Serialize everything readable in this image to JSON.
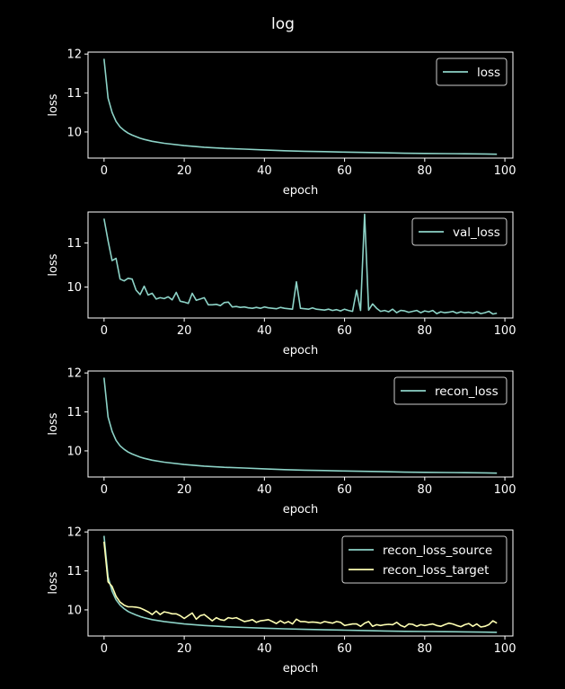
{
  "figure": {
    "title": "log",
    "background": "#000000"
  },
  "colors": {
    "series1": "#8dd3c7",
    "series2": "#feffb3",
    "axes": "#ffffff",
    "text": "#ffffff"
  },
  "chart_data": [
    {
      "type": "line",
      "xlabel": "epoch",
      "ylabel": "loss",
      "xlim": [
        -4,
        102
      ],
      "ylim": [
        9.33,
        12.05
      ],
      "xticks": [
        0,
        20,
        40,
        60,
        80,
        100
      ],
      "yticks": [
        10,
        11,
        12
      ],
      "legend": "upper right",
      "series": [
        {
          "name": "loss",
          "color": "#8dd3c7",
          "x": [
            0,
            1,
            2,
            3,
            4,
            5,
            6,
            7,
            8,
            9,
            10,
            12,
            15,
            20,
            25,
            30,
            35,
            40,
            45,
            50,
            55,
            60,
            65,
            70,
            75,
            80,
            85,
            90,
            95,
            98
          ],
          "y": [
            11.88,
            10.87,
            10.5,
            10.27,
            10.13,
            10.04,
            9.97,
            9.92,
            9.88,
            9.84,
            9.81,
            9.76,
            9.71,
            9.65,
            9.61,
            9.58,
            9.56,
            9.54,
            9.52,
            9.505,
            9.495,
            9.485,
            9.475,
            9.465,
            9.455,
            9.45,
            9.445,
            9.44,
            9.435,
            9.43
          ]
        }
      ]
    },
    {
      "type": "line",
      "xlabel": "epoch",
      "ylabel": "loss",
      "xlim": [
        -4,
        102
      ],
      "ylim": [
        9.3,
        11.7
      ],
      "xticks": [
        0,
        20,
        40,
        60,
        80,
        100
      ],
      "yticks": [
        10,
        11
      ],
      "legend": "upper right",
      "series": [
        {
          "name": "val_loss",
          "color": "#8dd3c7",
          "x": [
            0,
            1,
            2,
            3,
            4,
            5,
            6,
            7,
            8,
            9,
            10,
            11,
            12,
            13,
            14,
            15,
            16,
            17,
            18,
            19,
            20,
            21,
            22,
            23,
            24,
            25,
            26,
            27,
            28,
            29,
            30,
            31,
            32,
            33,
            34,
            35,
            36,
            37,
            38,
            39,
            40,
            41,
            42,
            43,
            44,
            45,
            46,
            47,
            48,
            49,
            50,
            51,
            52,
            53,
            54,
            55,
            56,
            57,
            58,
            59,
            60,
            61,
            62,
            63,
            64,
            65,
            66,
            67,
            68,
            69,
            70,
            71,
            72,
            73,
            74,
            75,
            76,
            77,
            78,
            79,
            80,
            81,
            82,
            83,
            84,
            85,
            86,
            87,
            88,
            89,
            90,
            91,
            92,
            93,
            94,
            95,
            96,
            97,
            98
          ],
          "y": [
            11.55,
            11.05,
            10.6,
            10.65,
            10.18,
            10.14,
            10.2,
            10.18,
            9.93,
            9.83,
            10.02,
            9.82,
            9.86,
            9.73,
            9.76,
            9.74,
            9.78,
            9.71,
            9.88,
            9.68,
            9.66,
            9.63,
            9.86,
            9.7,
            9.73,
            9.76,
            9.6,
            9.6,
            9.61,
            9.58,
            9.65,
            9.66,
            9.55,
            9.56,
            9.54,
            9.55,
            9.53,
            9.52,
            9.54,
            9.52,
            9.55,
            9.53,
            9.52,
            9.51,
            9.54,
            9.52,
            9.51,
            9.5,
            10.12,
            9.52,
            9.51,
            9.5,
            9.53,
            9.5,
            9.49,
            9.48,
            9.5,
            9.47,
            9.49,
            9.46,
            9.5,
            9.47,
            9.45,
            9.93,
            9.47,
            11.65,
            9.48,
            9.62,
            9.52,
            9.45,
            9.47,
            9.44,
            9.5,
            9.42,
            9.47,
            9.46,
            9.43,
            9.45,
            9.47,
            9.42,
            9.46,
            9.44,
            9.47,
            9.4,
            9.44,
            9.42,
            9.43,
            9.45,
            9.41,
            9.44,
            9.42,
            9.43,
            9.41,
            9.44,
            9.4,
            9.42,
            9.45,
            9.39,
            9.41
          ]
        }
      ]
    },
    {
      "type": "line",
      "xlabel": "epoch",
      "ylabel": "loss",
      "xlim": [
        -4,
        102
      ],
      "ylim": [
        9.33,
        12.05
      ],
      "xticks": [
        0,
        20,
        40,
        60,
        80,
        100
      ],
      "yticks": [
        10,
        11,
        12
      ],
      "legend": "upper right",
      "series": [
        {
          "name": "recon_loss",
          "color": "#8dd3c7",
          "x": [
            0,
            1,
            2,
            3,
            4,
            5,
            6,
            7,
            8,
            9,
            10,
            12,
            15,
            20,
            25,
            30,
            35,
            40,
            45,
            50,
            55,
            60,
            65,
            70,
            75,
            80,
            85,
            90,
            95,
            98
          ],
          "y": [
            11.88,
            10.87,
            10.5,
            10.27,
            10.13,
            10.04,
            9.97,
            9.92,
            9.88,
            9.84,
            9.81,
            9.76,
            9.71,
            9.65,
            9.61,
            9.58,
            9.56,
            9.54,
            9.52,
            9.505,
            9.495,
            9.485,
            9.475,
            9.465,
            9.455,
            9.45,
            9.445,
            9.44,
            9.435,
            9.43
          ]
        }
      ]
    },
    {
      "type": "line",
      "xlabel": "epoch",
      "ylabel": "loss",
      "xlim": [
        -4,
        102
      ],
      "ylim": [
        9.33,
        12.05
      ],
      "xticks": [
        0,
        20,
        40,
        60,
        80,
        100
      ],
      "yticks": [
        10,
        11,
        12
      ],
      "legend": "upper right",
      "series": [
        {
          "name": "recon_loss_source",
          "color": "#8dd3c7",
          "x": [
            0,
            1,
            2,
            3,
            4,
            5,
            6,
            7,
            8,
            9,
            10,
            12,
            15,
            20,
            25,
            30,
            35,
            40,
            45,
            50,
            55,
            60,
            65,
            70,
            75,
            80,
            85,
            90,
            95,
            98
          ],
          "y": [
            11.9,
            10.85,
            10.48,
            10.26,
            10.12,
            10.03,
            9.96,
            9.91,
            9.87,
            9.83,
            9.8,
            9.75,
            9.7,
            9.64,
            9.6,
            9.57,
            9.55,
            9.53,
            9.515,
            9.5,
            9.49,
            9.48,
            9.47,
            9.46,
            9.45,
            9.445,
            9.44,
            9.435,
            9.43,
            9.425
          ]
        },
        {
          "name": "recon_loss_target",
          "color": "#feffb3",
          "x": [
            0,
            1,
            2,
            3,
            4,
            5,
            6,
            7,
            8,
            9,
            10,
            11,
            12,
            13,
            14,
            15,
            16,
            17,
            18,
            19,
            20,
            21,
            22,
            23,
            24,
            25,
            26,
            27,
            28,
            29,
            30,
            31,
            32,
            33,
            34,
            35,
            36,
            37,
            38,
            39,
            40,
            41,
            42,
            43,
            44,
            45,
            46,
            47,
            48,
            49,
            50,
            51,
            52,
            53,
            54,
            55,
            56,
            57,
            58,
            59,
            60,
            61,
            62,
            63,
            64,
            65,
            66,
            67,
            68,
            69,
            70,
            71,
            72,
            73,
            74,
            75,
            76,
            77,
            78,
            79,
            80,
            81,
            82,
            83,
            84,
            85,
            86,
            87,
            88,
            89,
            90,
            91,
            92,
            93,
            94,
            95,
            96,
            97,
            98
          ],
          "y": [
            11.75,
            10.72,
            10.6,
            10.35,
            10.2,
            10.12,
            10.08,
            10.08,
            10.07,
            10.05,
            10.0,
            9.95,
            9.88,
            9.97,
            9.88,
            9.95,
            9.93,
            9.9,
            9.9,
            9.85,
            9.78,
            9.85,
            9.92,
            9.76,
            9.85,
            9.88,
            9.8,
            9.72,
            9.8,
            9.75,
            9.73,
            9.8,
            9.78,
            9.8,
            9.75,
            9.7,
            9.72,
            9.75,
            9.68,
            9.72,
            9.73,
            9.75,
            9.7,
            9.65,
            9.72,
            9.66,
            9.7,
            9.64,
            9.76,
            9.7,
            9.7,
            9.68,
            9.69,
            9.68,
            9.66,
            9.7,
            9.68,
            9.66,
            9.7,
            9.68,
            9.6,
            9.62,
            9.64,
            9.64,
            9.58,
            9.66,
            9.7,
            9.58,
            9.62,
            9.6,
            9.62,
            9.63,
            9.62,
            9.68,
            9.6,
            9.56,
            9.64,
            9.63,
            9.58,
            9.62,
            9.6,
            9.62,
            9.64,
            9.6,
            9.58,
            9.62,
            9.66,
            9.64,
            9.6,
            9.57,
            9.62,
            9.65,
            9.58,
            9.64,
            9.56,
            9.58,
            9.62,
            9.72,
            9.66
          ]
        }
      ]
    }
  ]
}
